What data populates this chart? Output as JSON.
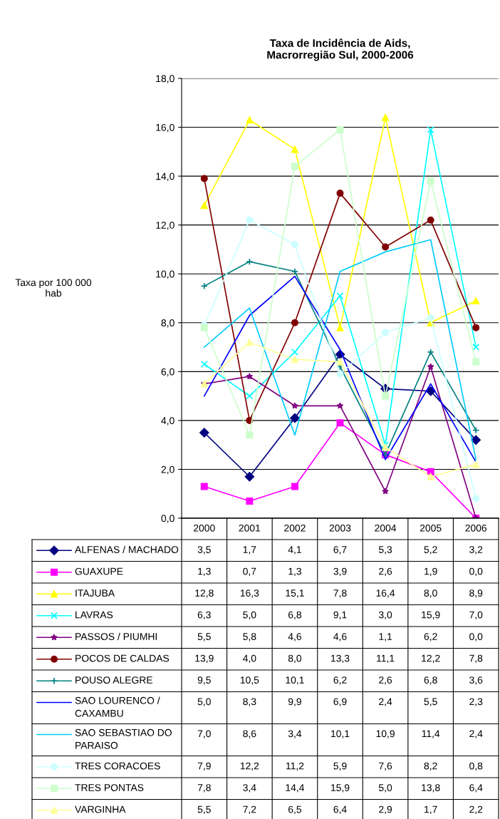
{
  "chart_data": {
    "type": "line",
    "title": "Taxa de Incidência de Aids,\nMacrorregião Sul, 2000-2006",
    "annotations": [
      "Taxa por 100 000\nhab"
    ],
    "categories": [
      "2000",
      "2001",
      "2002",
      "2003",
      "2004",
      "2005",
      "2006"
    ],
    "ylim": [
      0,
      18
    ],
    "yticks": [
      {
        "value": 0,
        "label": "0,0"
      },
      {
        "value": 2,
        "label": "2,0"
      },
      {
        "value": 4,
        "label": "4,0"
      },
      {
        "value": 6,
        "label": "6,0"
      },
      {
        "value": 8,
        "label": "8,0"
      },
      {
        "value": 10,
        "label": "10,0"
      },
      {
        "value": 12,
        "label": "12,0"
      },
      {
        "value": 14,
        "label": "14,0"
      },
      {
        "value": 16,
        "label": "16,0"
      },
      {
        "value": 18,
        "label": "18,0"
      }
    ],
    "grid": "y",
    "legend": "bottom",
    "series": [
      {
        "name": "ALFENAS / MACHADO",
        "color": "#000080",
        "marker": "diamond",
        "values": [
          3.5,
          1.7,
          4.1,
          6.7,
          5.3,
          5.2,
          3.2
        ],
        "value_labels": [
          "3,5",
          "1,7",
          "4,1",
          "6,7",
          "5,3",
          "5,2",
          "3,2"
        ]
      },
      {
        "name": "GUAXUPE",
        "color": "#ff00ff",
        "marker": "square",
        "values": [
          1.3,
          0.7,
          1.3,
          3.9,
          2.6,
          1.9,
          0.0
        ],
        "value_labels": [
          "1,3",
          "0,7",
          "1,3",
          "3,9",
          "2,6",
          "1,9",
          "0,0"
        ]
      },
      {
        "name": "ITAJUBA",
        "color": "#ffff00",
        "marker": "triangle",
        "values": [
          12.8,
          16.3,
          15.1,
          7.8,
          16.4,
          8.0,
          8.9
        ],
        "value_labels": [
          "12,8",
          "16,3",
          "15,1",
          "7,8",
          "16,4",
          "8,0",
          "8,9"
        ]
      },
      {
        "name": "LAVRAS",
        "color": "#00ffff",
        "marker": "cross",
        "values": [
          6.3,
          5.0,
          6.8,
          9.1,
          3.0,
          15.9,
          7.0
        ],
        "value_labels": [
          "6,3",
          "5,0",
          "6,8",
          "9,1",
          "3,0",
          "15,9",
          "7,0"
        ]
      },
      {
        "name": "PASSOS / PIUMHI",
        "color": "#800080",
        "marker": "star",
        "values": [
          5.5,
          5.8,
          4.6,
          4.6,
          1.1,
          6.2,
          0.0
        ],
        "value_labels": [
          "5,5",
          "5,8",
          "4,6",
          "4,6",
          "1,1",
          "6,2",
          "0,0"
        ]
      },
      {
        "name": "POCOS DE CALDAS",
        "color": "#800000",
        "marker": "circle",
        "values": [
          13.9,
          4.0,
          8.0,
          13.3,
          11.1,
          12.2,
          7.8
        ],
        "value_labels": [
          "13,9",
          "4,0",
          "8,0",
          "13,3",
          "11,1",
          "12,2",
          "7,8"
        ]
      },
      {
        "name": "POUSO ALEGRE",
        "color": "#008080",
        "marker": "plus",
        "values": [
          9.5,
          10.5,
          10.1,
          6.2,
          2.6,
          6.8,
          3.6
        ],
        "value_labels": [
          "9,5",
          "10,5",
          "10,1",
          "6,2",
          "2,6",
          "6,8",
          "3,6"
        ]
      },
      {
        "name": "SAO LOURENCO /\nCAXAMBU",
        "color": "#0000ff",
        "values": [
          5.0,
          8.3,
          9.9,
          6.9,
          2.4,
          5.5,
          2.3
        ],
        "value_labels": [
          "5,0",
          "8,3",
          "9,9",
          "6,9",
          "2,4",
          "5,5",
          "2,3"
        ]
      },
      {
        "name": "SAO SEBASTIAO DO\nPARAISO",
        "color": "#00ccff",
        "values": [
          7.0,
          8.6,
          3.4,
          10.1,
          10.9,
          11.4,
          2.4
        ],
        "value_labels": [
          "7,0",
          "8,6",
          "3,4",
          "10,1",
          "10,9",
          "11,4",
          "2,4"
        ]
      },
      {
        "name": "TRES CORACOES",
        "color": "#ccffff",
        "marker": "circle",
        "values": [
          7.9,
          12.2,
          11.2,
          5.9,
          7.6,
          8.2,
          0.8
        ],
        "value_labels": [
          "7,9",
          "12,2",
          "11,2",
          "5,9",
          "7,6",
          "8,2",
          "0,8"
        ]
      },
      {
        "name": "TRES PONTAS",
        "color": "#ccffcc",
        "marker": "square",
        "values": [
          7.8,
          3.4,
          14.4,
          15.9,
          5.0,
          13.8,
          6.4
        ],
        "value_labels": [
          "7,8",
          "3,4",
          "14,4",
          "15,9",
          "5,0",
          "13,8",
          "6,4"
        ]
      },
      {
        "name": "VARGINHA",
        "color": "#ffff99",
        "marker": "triangle",
        "values": [
          5.5,
          7.2,
          6.5,
          6.4,
          2.9,
          1.7,
          2.2
        ],
        "value_labels": [
          "5,5",
          "7,2",
          "6,5",
          "6,4",
          "2,9",
          "1,7",
          "2,2"
        ]
      }
    ]
  }
}
